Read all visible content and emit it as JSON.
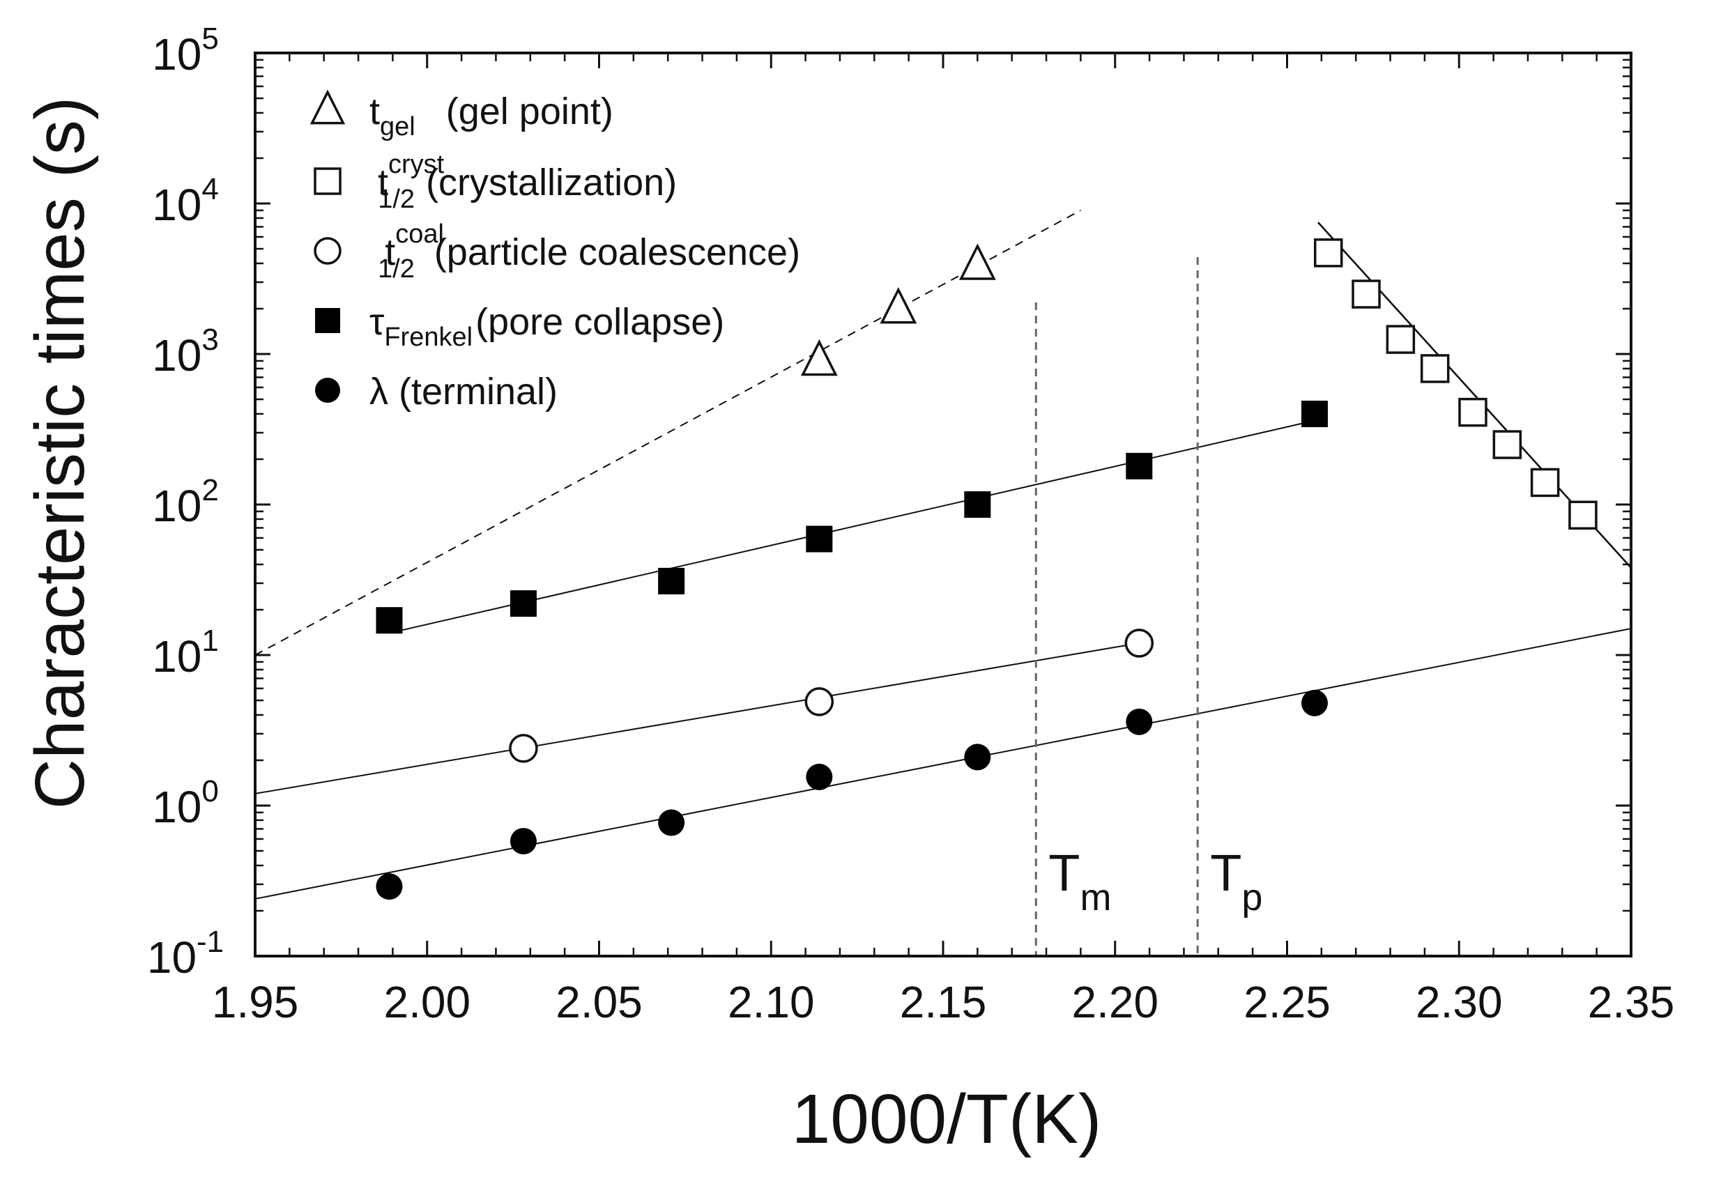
{
  "chart_data": {
    "type": "scatter",
    "xlabel": "1000/T(K)",
    "ylabel": "Characteristic times (s)",
    "xlim": [
      1.95,
      2.35
    ],
    "ylim": [
      0.1,
      100000
    ],
    "yscale": "log",
    "grid": false,
    "legend_position": "top-left",
    "x_ticks": [
      "1.95",
      "2.00",
      "2.05",
      "2.10",
      "2.15",
      "2.20",
      "2.25",
      "2.30",
      "2.35"
    ],
    "y_ticks": [
      {
        "base": "10",
        "exp": "-1"
      },
      {
        "base": "10",
        "exp": "0"
      },
      {
        "base": "10",
        "exp": "1"
      },
      {
        "base": "10",
        "exp": "2"
      },
      {
        "base": "10",
        "exp": "3"
      },
      {
        "base": "10",
        "exp": "4"
      },
      {
        "base": "10",
        "exp": "5"
      }
    ],
    "series": [
      {
        "key": "gel",
        "marker": "open-triangle",
        "symbol": "t",
        "sub": "gel",
        "sup": "",
        "desc": "(gel point)",
        "x": [
          2.114,
          2.137,
          2.16
        ],
        "y": [
          900,
          2000,
          3900
        ],
        "fit": {
          "style": "dashed",
          "x": [
            1.95,
            2.19
          ],
          "y": [
            10,
            9000
          ]
        }
      },
      {
        "key": "cryst",
        "marker": "open-square",
        "symbol": "t",
        "sub": "1/2",
        "sup": "cryst",
        "desc": "(crystallization)",
        "x": [
          2.262,
          2.273,
          2.283,
          2.293,
          2.304,
          2.314,
          2.325,
          2.336
        ],
        "y": [
          4700,
          2500,
          1250,
          800,
          410,
          250,
          140,
          85
        ],
        "fit": {
          "style": "solid",
          "x": [
            2.259,
            2.35
          ],
          "y": [
            7500,
            38
          ]
        }
      },
      {
        "key": "coal",
        "marker": "open-circle",
        "symbol": "t",
        "sub": "1/2",
        "sup": "coal",
        "desc": "(particle coalescence)",
        "x": [
          2.028,
          2.114,
          2.207
        ],
        "y": [
          2.4,
          4.9,
          12
        ],
        "fit": {
          "style": "solid",
          "x": [
            1.95,
            2.207
          ],
          "y": [
            1.2,
            12
          ]
        }
      },
      {
        "key": "frenkel",
        "marker": "filled-square",
        "symbol": "τ",
        "sub": "Frenkel",
        "sup": "",
        "desc": "(pore collapse)",
        "x": [
          1.989,
          2.028,
          2.071,
          2.114,
          2.16,
          2.207,
          2.258
        ],
        "y": [
          17,
          22,
          31,
          59,
          100,
          180,
          400
        ],
        "fit": {
          "style": "solid",
          "x": [
            1.989,
            2.26
          ],
          "y": [
            14,
            370
          ]
        }
      },
      {
        "key": "terminal",
        "marker": "filled-circle",
        "symbol": "λ",
        "sub": "",
        "sup": "",
        "desc": "(terminal)",
        "x": [
          1.989,
          2.028,
          2.071,
          2.114,
          2.16,
          2.207,
          2.258
        ],
        "y": [
          0.29,
          0.58,
          0.77,
          1.55,
          2.1,
          3.6,
          4.8
        ],
        "fit": {
          "style": "solid",
          "x": [
            1.95,
            2.35
          ],
          "y": [
            0.24,
            15
          ]
        }
      }
    ],
    "vertical_markers": [
      {
        "x": 2.177,
        "top": 2200,
        "label": "T",
        "sub": "m"
      },
      {
        "x": 2.224,
        "top": 4400,
        "label": "T",
        "sub": "p"
      }
    ]
  }
}
